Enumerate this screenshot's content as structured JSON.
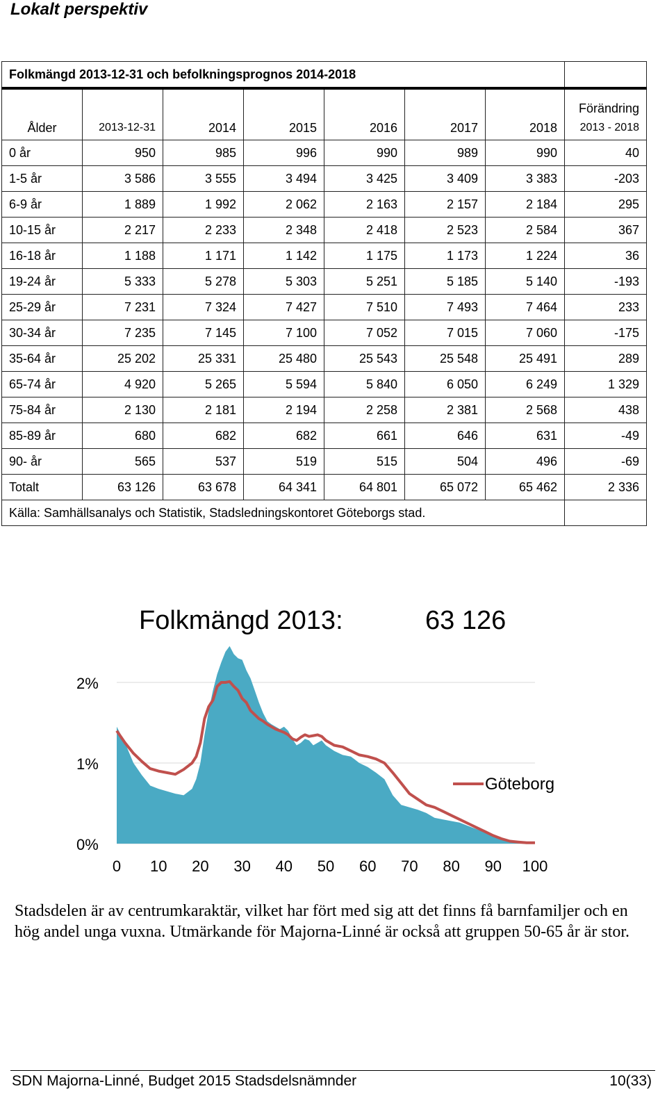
{
  "heading": "Lokalt perspektiv",
  "table": {
    "title": "Folkmängd 2013-12-31 och befolkningsprognos 2014-2018",
    "change_header_top": "Förändring",
    "columns": [
      "Ålder",
      "2013-12-31",
      "2014",
      "2015",
      "2016",
      "2017",
      "2018",
      "2013 - 2018"
    ],
    "rows": [
      [
        "0 år",
        "950",
        "985",
        "996",
        "990",
        "989",
        "990",
        "40"
      ],
      [
        "1-5 år",
        "3 586",
        "3 555",
        "3 494",
        "3 425",
        "3 409",
        "3 383",
        "-203"
      ],
      [
        "6-9 år",
        "1 889",
        "1 992",
        "2 062",
        "2 163",
        "2 157",
        "2 184",
        "295"
      ],
      [
        "10-15 år",
        "2 217",
        "2 233",
        "2 348",
        "2 418",
        "2 523",
        "2 584",
        "367"
      ],
      [
        "16-18 år",
        "1 188",
        "1 171",
        "1 142",
        "1 175",
        "1 173",
        "1 224",
        "36"
      ],
      [
        "19-24 år",
        "5 333",
        "5 278",
        "5 303",
        "5 251",
        "5 185",
        "5 140",
        "-193"
      ],
      [
        "25-29 år",
        "7 231",
        "7 324",
        "7 427",
        "7 510",
        "7 493",
        "7 464",
        "233"
      ],
      [
        "30-34 år",
        "7 235",
        "7 145",
        "7 100",
        "7 052",
        "7 015",
        "7 060",
        "-175"
      ],
      [
        "35-64 år",
        "25 202",
        "25 331",
        "25 480",
        "25 543",
        "25 548",
        "25 491",
        "289"
      ],
      [
        "65-74 år",
        "4 920",
        "5 265",
        "5 594",
        "5 840",
        "6 050",
        "6 249",
        "1 329"
      ],
      [
        "75-84 år",
        "2 130",
        "2 181",
        "2 194",
        "2 258",
        "2 381",
        "2 568",
        "438"
      ],
      [
        "85-89 år",
        "680",
        "682",
        "682",
        "661",
        "646",
        "631",
        "-49"
      ],
      [
        "90- år",
        "565",
        "537",
        "519",
        "515",
        "504",
        "496",
        "-69"
      ],
      [
        "Totalt",
        "63 126",
        "63 678",
        "64 341",
        "64 801",
        "65 072",
        "65 462",
        "2 336"
      ]
    ],
    "source": "Källa:  Samhällsanalys och Statistik, Stadsledningskontoret Göteborgs stad."
  },
  "chart_data": {
    "type": "area",
    "title": "Folkmängd 2013:",
    "title_value": "63 126",
    "xlim": [
      0,
      100
    ],
    "ylim": [
      0,
      2.5
    ],
    "x_ticks": [
      "0",
      "10",
      "20",
      "30",
      "40",
      "50",
      "60",
      "70",
      "80",
      "90",
      "100"
    ],
    "y_ticks": [
      "0%",
      "1%",
      "2%"
    ],
    "grid": true,
    "legend_position": "right",
    "colors": {
      "area": "#4aaac4",
      "line": "#c0504d"
    },
    "series": [
      {
        "kind": "area",
        "x": [
          0,
          2,
          4,
          6,
          8,
          10,
          12,
          14,
          16,
          18,
          19,
          20,
          21,
          22,
          23,
          24,
          25,
          26,
          27,
          28,
          29,
          30,
          31,
          32,
          33,
          34,
          35,
          36,
          37,
          38,
          39,
          40,
          41,
          42,
          43,
          44,
          45,
          46,
          47,
          48,
          49,
          50,
          52,
          54,
          56,
          58,
          60,
          62,
          64,
          66,
          68,
          70,
          72,
          74,
          76,
          78,
          80,
          82,
          84,
          86,
          88,
          90,
          92,
          94,
          96,
          98,
          100
        ],
        "y": [
          1.45,
          1.25,
          1.0,
          0.85,
          0.72,
          0.68,
          0.65,
          0.62,
          0.6,
          0.68,
          0.8,
          1.0,
          1.35,
          1.65,
          1.9,
          2.1,
          2.25,
          2.38,
          2.45,
          2.35,
          2.3,
          2.28,
          2.15,
          2.05,
          1.9,
          1.75,
          1.62,
          1.52,
          1.48,
          1.45,
          1.42,
          1.45,
          1.4,
          1.3,
          1.22,
          1.25,
          1.3,
          1.28,
          1.22,
          1.25,
          1.28,
          1.22,
          1.15,
          1.1,
          1.08,
          1.0,
          0.95,
          0.88,
          0.8,
          0.6,
          0.48,
          0.45,
          0.42,
          0.38,
          0.32,
          0.3,
          0.28,
          0.26,
          0.22,
          0.18,
          0.14,
          0.1,
          0.06,
          0.03,
          0.02,
          0.01,
          0.0
        ]
      },
      {
        "kind": "line",
        "name": "Göteborg",
        "x": [
          0,
          2,
          4,
          6,
          8,
          10,
          12,
          14,
          16,
          18,
          19,
          20,
          21,
          22,
          23,
          24,
          25,
          26,
          27,
          28,
          29,
          30,
          31,
          32,
          33,
          34,
          35,
          36,
          37,
          38,
          39,
          40,
          41,
          42,
          43,
          44,
          45,
          46,
          47,
          48,
          49,
          50,
          52,
          54,
          56,
          58,
          60,
          62,
          64,
          66,
          68,
          70,
          72,
          74,
          76,
          78,
          80,
          82,
          84,
          86,
          88,
          90,
          92,
          94,
          96,
          98,
          100
        ],
        "y": [
          1.4,
          1.25,
          1.12,
          1.02,
          0.93,
          0.9,
          0.88,
          0.86,
          0.92,
          1.0,
          1.08,
          1.25,
          1.55,
          1.7,
          1.78,
          1.95,
          2.0,
          2.0,
          2.01,
          1.95,
          1.9,
          1.8,
          1.75,
          1.65,
          1.6,
          1.55,
          1.52,
          1.48,
          1.45,
          1.42,
          1.4,
          1.38,
          1.35,
          1.3,
          1.28,
          1.32,
          1.35,
          1.33,
          1.34,
          1.35,
          1.33,
          1.28,
          1.22,
          1.2,
          1.15,
          1.1,
          1.08,
          1.05,
          1.0,
          0.88,
          0.75,
          0.62,
          0.55,
          0.48,
          0.45,
          0.4,
          0.35,
          0.3,
          0.25,
          0.2,
          0.15,
          0.1,
          0.06,
          0.03,
          0.02,
          0.01,
          0.01
        ]
      }
    ]
  },
  "body_text": "Stadsdelen är av centrumkaraktär, vilket har fört med sig att det finns få barnfamiljer och en hög andel unga vuxna. Utmärkande för Majorna-Linné är också att gruppen 50-65 år är stor.",
  "footer": {
    "left": "SDN Majorna-Linné, Budget 2015 Stadsdelsnämnder",
    "right": "10(33)"
  }
}
